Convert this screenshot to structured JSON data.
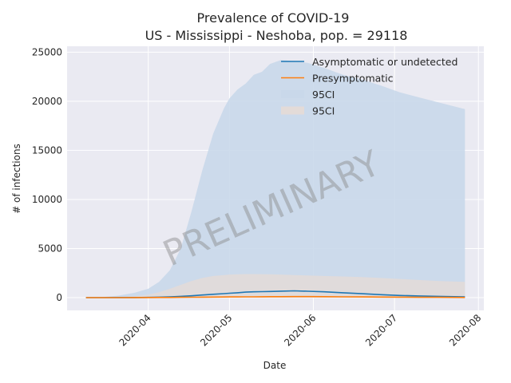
{
  "chart_data": {
    "type": "area",
    "title": "Prevalence of COVID-19",
    "subtitle": "US - Mississippi - Neshoba, pop. = 29118",
    "xlabel": "Date",
    "ylabel": "# of infections",
    "watermark": "PRELIMINARY",
    "x_range": [
      "2020-03-02",
      "2020-08-03"
    ],
    "ylim": [
      -1300,
      25600
    ],
    "xticks": [
      "2020-04",
      "2020-05",
      "2020-06",
      "2020-07",
      "2020-08"
    ],
    "yticks": [
      0,
      5000,
      10000,
      15000,
      20000,
      25000
    ],
    "grid": true,
    "legend_position": "top-right",
    "colors": {
      "background": "#eaeaf2",
      "grid": "#ffffff",
      "asymptomatic": "#1f77b4",
      "presymptomatic": "#ff7f0e",
      "ci_asymptomatic": "#c9d8ea",
      "ci_presymptomatic": "#e3dbd8"
    },
    "legend": [
      {
        "label": "Asymptomatic or undetected",
        "kind": "line",
        "color": "#1f77b4"
      },
      {
        "label": "Presymptomatic",
        "kind": "line",
        "color": "#ff7f0e"
      },
      {
        "label": "95CI",
        "kind": "patch",
        "color": "#c9d8ea"
      },
      {
        "label": "95CI",
        "kind": "patch",
        "color": "#e3dbd8"
      }
    ],
    "x": [
      "2020-03-09",
      "2020-03-15",
      "2020-03-21",
      "2020-03-27",
      "2020-04-01",
      "2020-04-05",
      "2020-04-09",
      "2020-04-13",
      "2020-04-17",
      "2020-04-21",
      "2020-04-25",
      "2020-04-29",
      "2020-05-01",
      "2020-05-04",
      "2020-05-07",
      "2020-05-10",
      "2020-05-13",
      "2020-05-16",
      "2020-05-20",
      "2020-05-25",
      "2020-05-30",
      "2020-06-05",
      "2020-06-12",
      "2020-06-19",
      "2020-06-26",
      "2020-07-03",
      "2020-07-10",
      "2020-07-17",
      "2020-07-27"
    ],
    "series": [
      {
        "name": "Asymptomatic or undetected",
        "values": [
          0,
          0,
          5,
          10,
          25,
          45,
          80,
          130,
          190,
          270,
          340,
          410,
          450,
          500,
          560,
          590,
          610,
          630,
          660,
          690,
          650,
          590,
          500,
          400,
          300,
          220,
          170,
          130,
          80
        ]
      },
      {
        "name": "Presymptomatic",
        "values": [
          0,
          0,
          3,
          5,
          8,
          15,
          20,
          30,
          40,
          50,
          55,
          65,
          70,
          75,
          80,
          85,
          90,
          95,
          100,
          110,
          110,
          100,
          85,
          70,
          55,
          45,
          35,
          30,
          20
        ]
      },
      {
        "name": "95CI",
        "upper": [
          0,
          50,
          200,
          500,
          900,
          1600,
          2800,
          5000,
          8800,
          13000,
          16700,
          19300,
          20300,
          21200,
          21800,
          22700,
          23000,
          23800,
          24200,
          24100,
          23900,
          23400,
          22700,
          22200,
          21600,
          20900,
          20400,
          19900,
          19200
        ],
        "lower": [
          0,
          0,
          0,
          0,
          0,
          0,
          0,
          0,
          0,
          0,
          0,
          0,
          0,
          0,
          0,
          0,
          0,
          0,
          0,
          0,
          0,
          0,
          0,
          0,
          0,
          0,
          0,
          0,
          0
        ]
      },
      {
        "name": "95CI",
        "upper": [
          0,
          20,
          60,
          120,
          300,
          550,
          900,
          1300,
          1700,
          2000,
          2200,
          2300,
          2350,
          2380,
          2400,
          2400,
          2390,
          2380,
          2350,
          2300,
          2250,
          2200,
          2150,
          2100,
          2000,
          1900,
          1800,
          1700,
          1600
        ],
        "lower": [
          0,
          0,
          0,
          0,
          0,
          0,
          0,
          0,
          0,
          0,
          0,
          0,
          0,
          0,
          0,
          0,
          0,
          0,
          0,
          0,
          0,
          0,
          0,
          0,
          0,
          0,
          0,
          0,
          0
        ]
      }
    ]
  }
}
